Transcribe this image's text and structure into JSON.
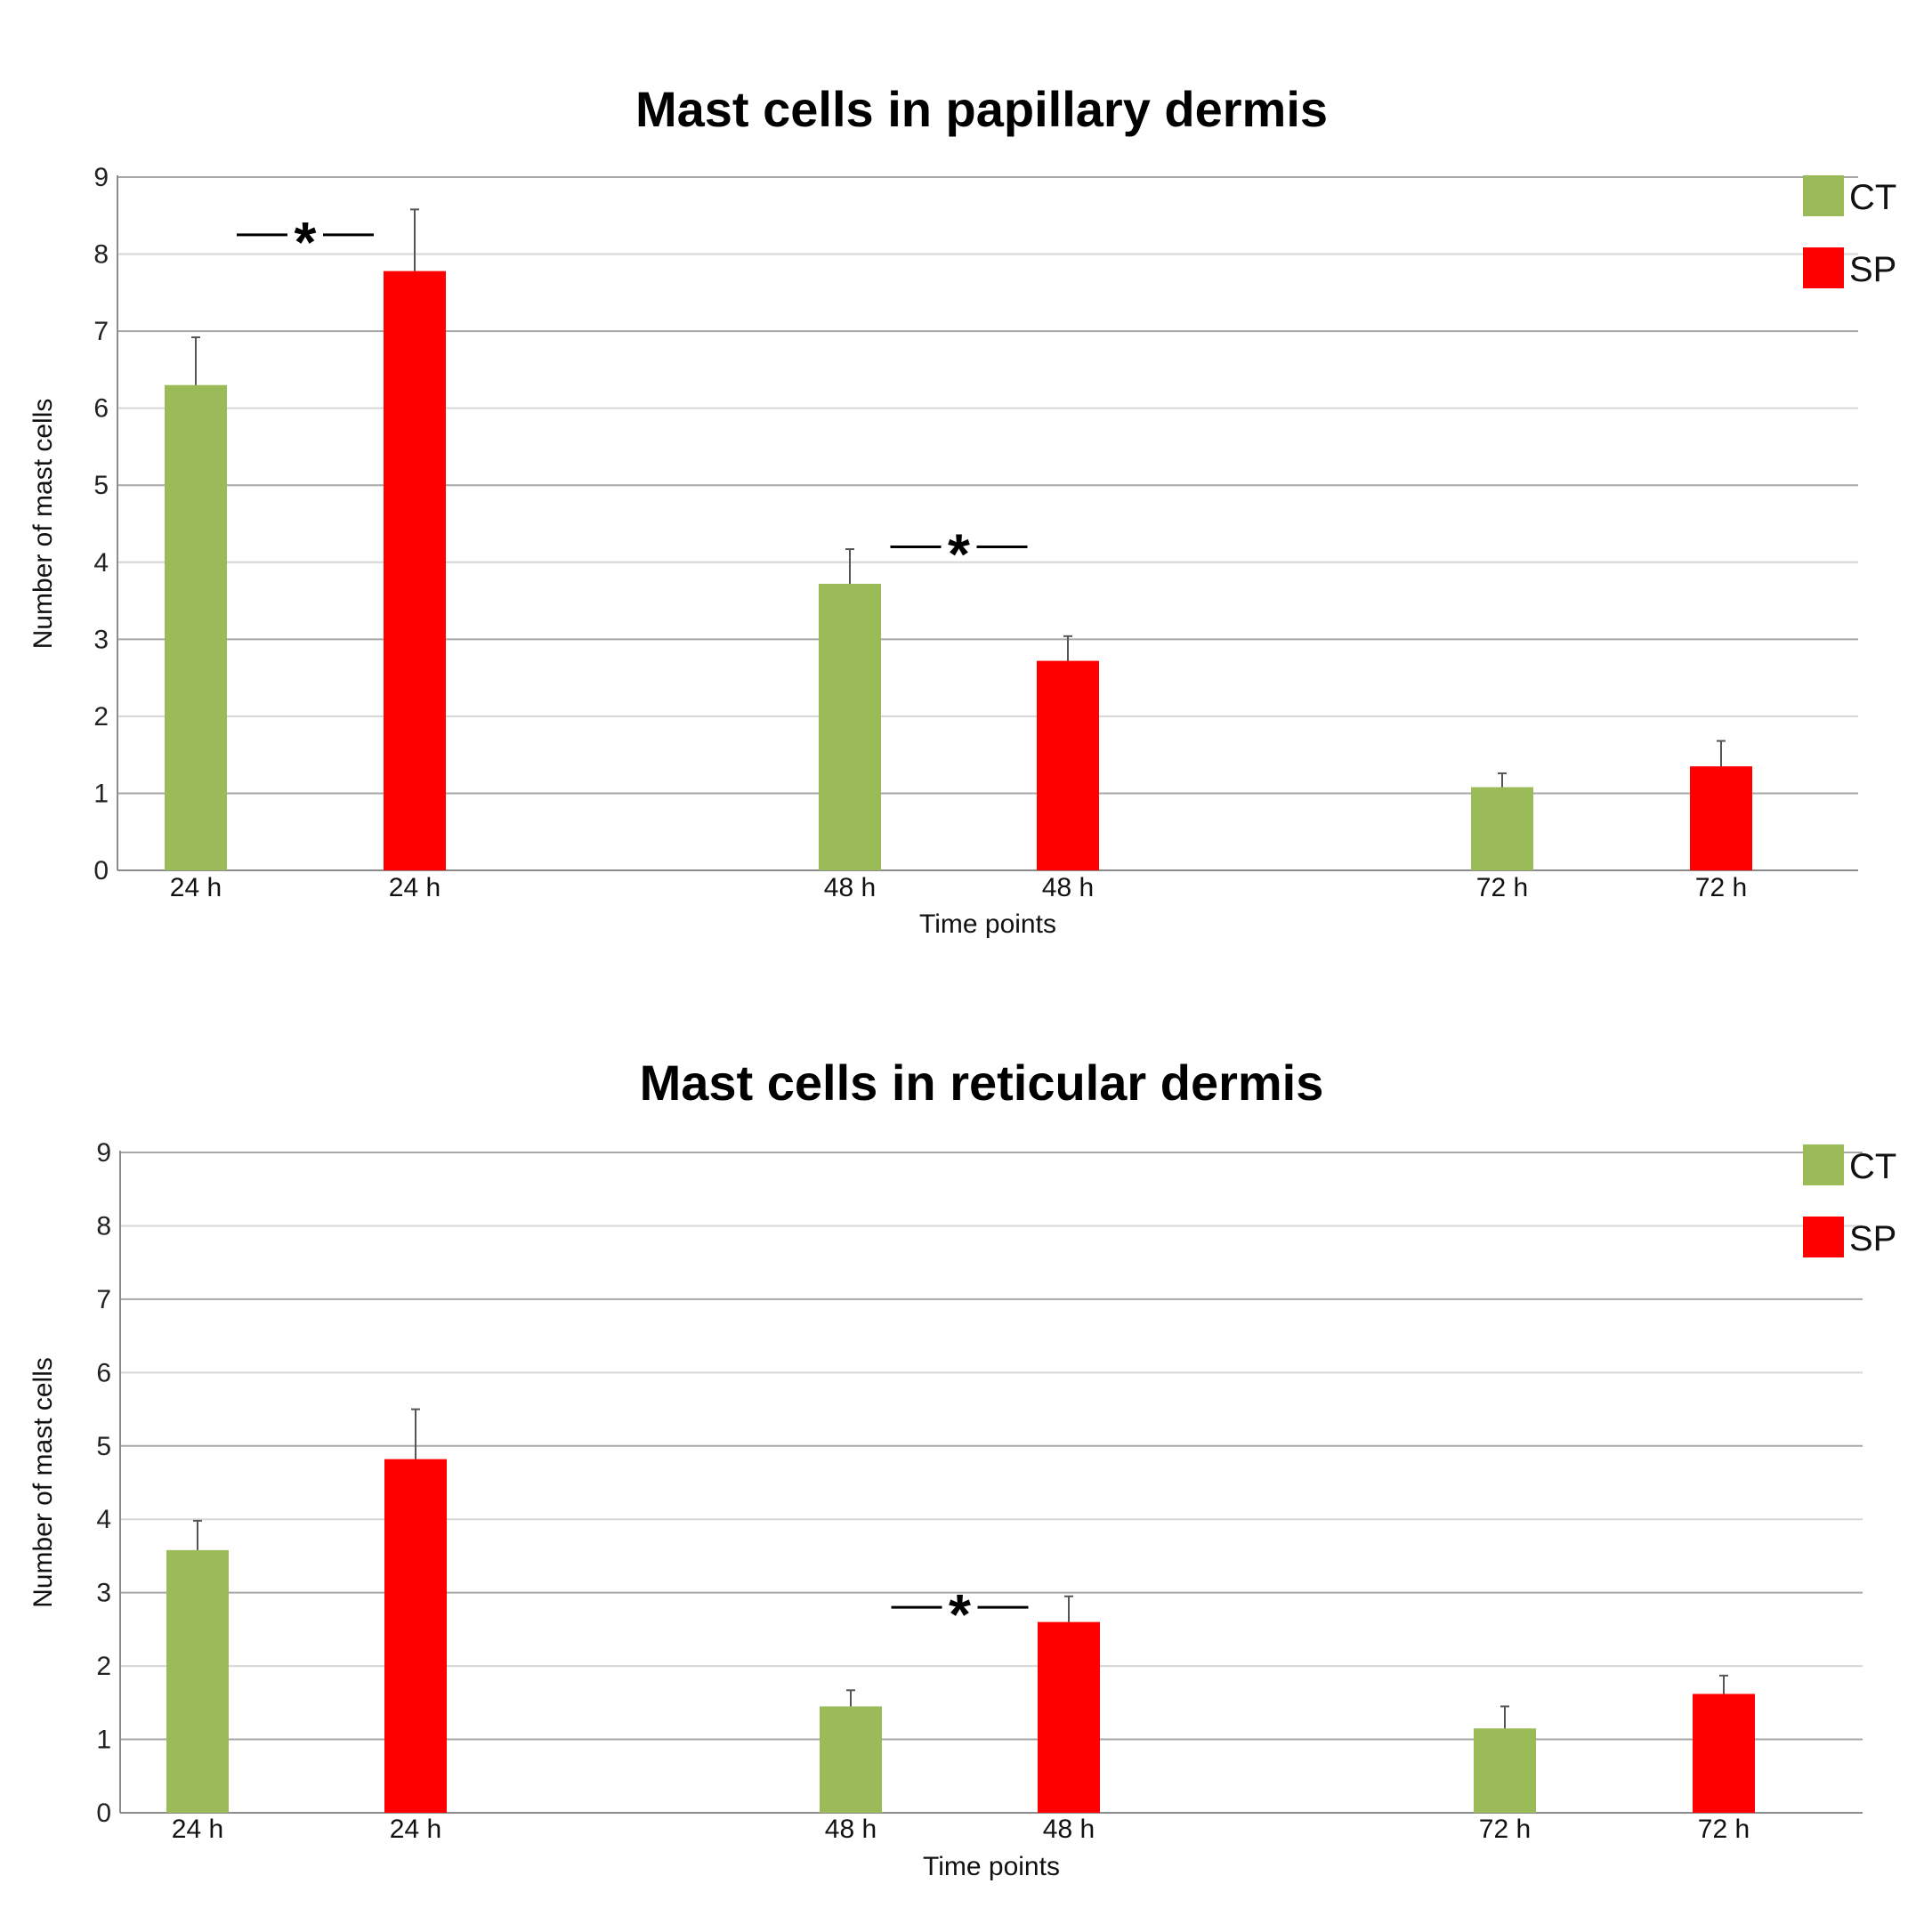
{
  "colors": {
    "CT": "#9bbb59",
    "SP": "#ff0000",
    "grid": "#c8c8c8",
    "axis": "#8c8c8c"
  },
  "legend": [
    {
      "label": "CT",
      "color": "#9bbb59"
    },
    {
      "label": "SP",
      "color": "#ff0000"
    }
  ],
  "chart_data": [
    {
      "type": "bar",
      "title": "Mast cells in papillary dermis",
      "xlabel": "Time points",
      "ylabel": "Number of mast cells",
      "ylim": [
        0,
        9
      ],
      "yticks": [
        "0",
        "1",
        "2",
        "3",
        "4",
        "5",
        "6",
        "7",
        "8",
        "9"
      ],
      "grid": true,
      "legend_position": "top-right",
      "bars": [
        {
          "category": "24 h",
          "series": "CT",
          "value": 6.3,
          "error": 0.62
        },
        {
          "category": "24 h",
          "series": "SP",
          "value": 7.78,
          "error": 0.8
        },
        {
          "category": "48 h",
          "series": "CT",
          "value": 3.72,
          "error": 0.45
        },
        {
          "category": "48 h",
          "series": "SP",
          "value": 2.72,
          "error": 0.32
        },
        {
          "category": "72 h",
          "series": "CT",
          "value": 1.08,
          "error": 0.18
        },
        {
          "category": "72 h",
          "series": "SP",
          "value": 1.35,
          "error": 0.33
        }
      ],
      "significance": [
        {
          "label": "*",
          "between": [
            0,
            1
          ],
          "y": 8.25
        },
        {
          "label": "*",
          "between": [
            2,
            3
          ],
          "y": 4.2
        }
      ]
    },
    {
      "type": "bar",
      "title": "Mast cells in reticular dermis",
      "xlabel": "Time points",
      "ylabel": "Number of mast cells",
      "ylim": [
        0,
        9
      ],
      "yticks": [
        "0",
        "1",
        "2",
        "3",
        "4",
        "5",
        "6",
        "7",
        "8",
        "9"
      ],
      "grid": true,
      "legend_position": "top-right",
      "bars": [
        {
          "category": "24 h",
          "series": "CT",
          "value": 3.58,
          "error": 0.4
        },
        {
          "category": "24 h",
          "series": "SP",
          "value": 4.82,
          "error": 0.68
        },
        {
          "category": "48 h",
          "series": "CT",
          "value": 1.45,
          "error": 0.22
        },
        {
          "category": "48 h",
          "series": "SP",
          "value": 2.6,
          "error": 0.35
        },
        {
          "category": "72 h",
          "series": "CT",
          "value": 1.15,
          "error": 0.3
        },
        {
          "category": "72 h",
          "series": "SP",
          "value": 1.62,
          "error": 0.25
        }
      ],
      "significance": [
        {
          "label": "*",
          "between": [
            2,
            3
          ],
          "y": 2.8
        }
      ]
    }
  ]
}
